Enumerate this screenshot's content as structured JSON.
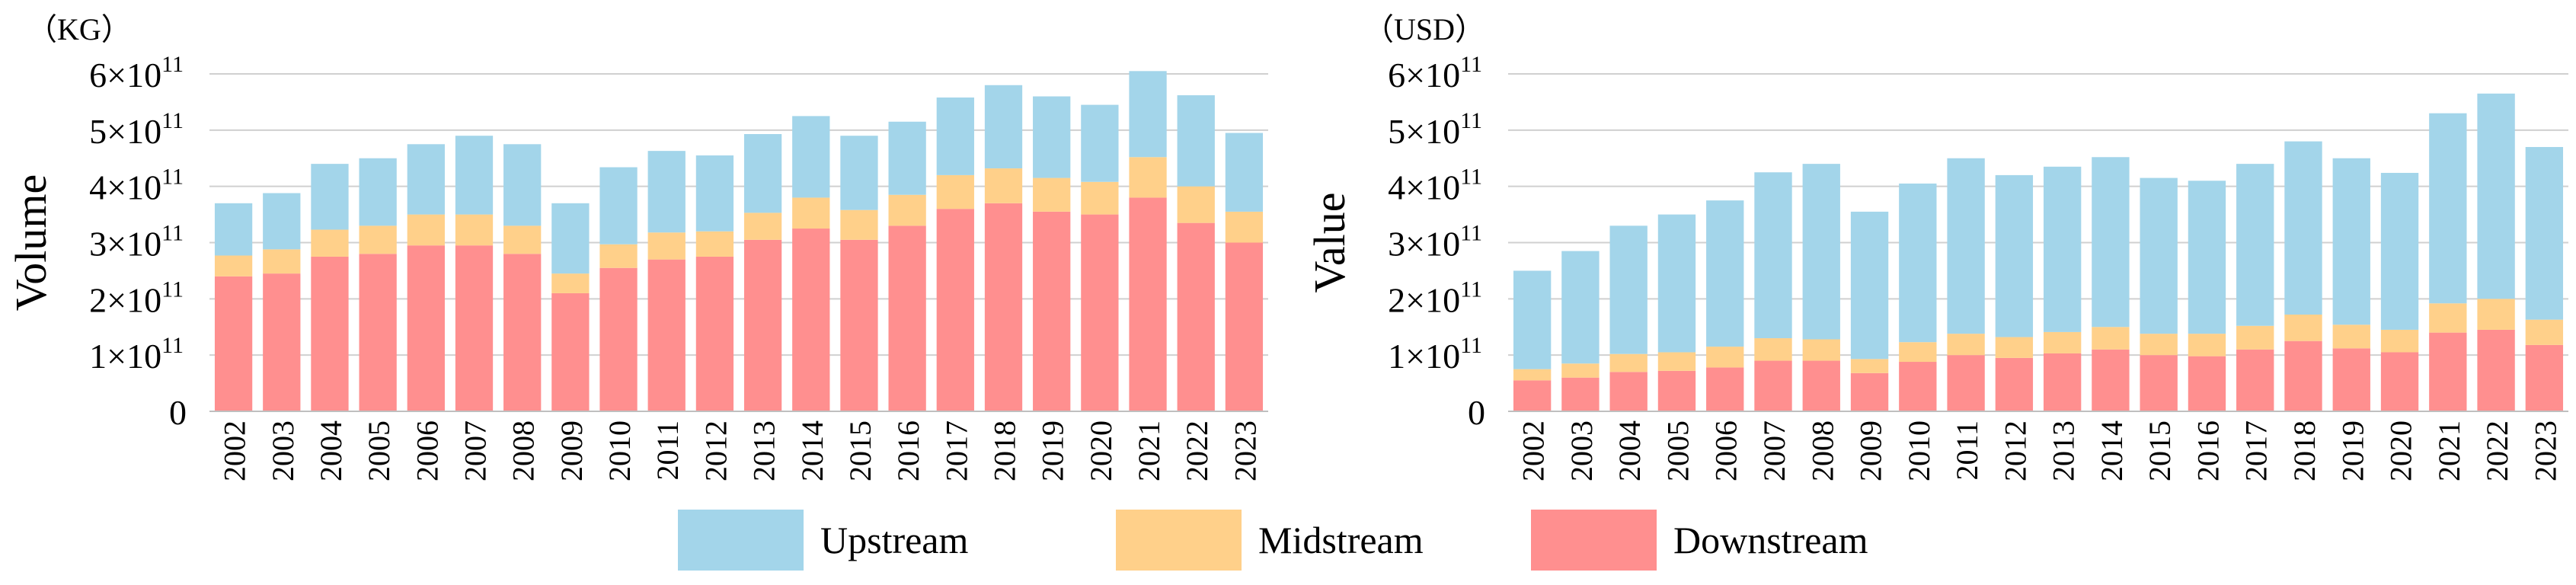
{
  "chart_data": [
    {
      "type": "bar",
      "stacked": true,
      "unit_label": "（KG）",
      "ylabel": "Volume",
      "xlabel": "",
      "ylim": [
        0,
        600000000000
      ],
      "yticks": [
        {
          "value": 0,
          "base": "0",
          "exp": ""
        },
        {
          "value": 100000000000,
          "base": "1×10",
          "exp": "11"
        },
        {
          "value": 200000000000,
          "base": "2×10",
          "exp": "11"
        },
        {
          "value": 300000000000,
          "base": "3×10",
          "exp": "11"
        },
        {
          "value": 400000000000,
          "base": "4×10",
          "exp": "11"
        },
        {
          "value": 500000000000,
          "base": "5×10",
          "exp": "11"
        },
        {
          "value": 600000000000,
          "base": "6×10",
          "exp": "11"
        }
      ],
      "grid": true,
      "categories": [
        "2002",
        "2003",
        "2004",
        "2005",
        "2006",
        "2007",
        "2008",
        "2009",
        "2010",
        "2011",
        "2012",
        "2013",
        "2014",
        "2015",
        "2016",
        "2017",
        "2018",
        "2019",
        "2020",
        "2021",
        "2022",
        "2023"
      ],
      "series": [
        {
          "name": "Downstream",
          "color": "#ff8f8f",
          "values": [
            240000000000.0,
            245000000000.0,
            275000000000.0,
            280000000000.0,
            295000000000.0,
            295000000000.0,
            280000000000.0,
            210000000000.0,
            255000000000.0,
            270000000000.0,
            275000000000.0,
            305000000000.0,
            325000000000.0,
            305000000000.0,
            330000000000.0,
            360000000000.0,
            370000000000.0,
            355000000000.0,
            350000000000.0,
            380000000000.0,
            335000000000.0,
            300000000000.0
          ]
        },
        {
          "name": "Midstream",
          "color": "#ffd08a",
          "values": [
            37000000000.0,
            43000000000.0,
            48000000000.0,
            50000000000.0,
            55000000000.0,
            55000000000.0,
            50000000000.0,
            35000000000.0,
            42000000000.0,
            48000000000.0,
            45000000000.0,
            48000000000.0,
            55000000000.0,
            53000000000.0,
            55000000000.0,
            60000000000.0,
            62000000000.0,
            60000000000.0,
            58000000000.0,
            72000000000.0,
            65000000000.0,
            55000000000.0
          ]
        },
        {
          "name": "Upstream",
          "color": "#a3d5ea",
          "values": [
            93000000000.0,
            100000000000.0,
            117000000000.0,
            120000000000.0,
            125000000000.0,
            140000000000.0,
            145000000000.0,
            125000000000.0,
            137000000000.0,
            145000000000.0,
            135000000000.0,
            140000000000.0,
            145000000000.0,
            132000000000.0,
            130000000000.0,
            138000000000.0,
            148000000000.0,
            145000000000.0,
            137000000000.0,
            153000000000.0,
            162000000000.0,
            140000000000.0
          ]
        }
      ]
    },
    {
      "type": "bar",
      "stacked": true,
      "unit_label": "（USD）",
      "ylabel": "Value",
      "xlabel": "",
      "ylim": [
        0,
        600000000000
      ],
      "yticks": [
        {
          "value": 0,
          "base": "0",
          "exp": ""
        },
        {
          "value": 100000000000,
          "base": "1×10",
          "exp": "11"
        },
        {
          "value": 200000000000,
          "base": "2×10",
          "exp": "11"
        },
        {
          "value": 300000000000,
          "base": "3×10",
          "exp": "11"
        },
        {
          "value": 400000000000,
          "base": "4×10",
          "exp": "11"
        },
        {
          "value": 500000000000,
          "base": "5×10",
          "exp": "11"
        },
        {
          "value": 600000000000,
          "base": "6×10",
          "exp": "11"
        }
      ],
      "grid": true,
      "categories": [
        "2002",
        "2003",
        "2004",
        "2005",
        "2006",
        "2007",
        "2008",
        "2009",
        "2010",
        "2011",
        "2012",
        "2013",
        "2014",
        "2015",
        "2016",
        "2017",
        "2018",
        "2019",
        "2020",
        "2021",
        "2022",
        "2023"
      ],
      "series": [
        {
          "name": "Downstream",
          "color": "#ff8f8f",
          "values": [
            55000000000.0,
            60000000000.0,
            70000000000.0,
            72000000000.0,
            78000000000.0,
            90000000000.0,
            90000000000.0,
            68000000000.0,
            88000000000.0,
            100000000000.0,
            95000000000.0,
            103000000000.0,
            110000000000.0,
            100000000000.0,
            98000000000.0,
            110000000000.0,
            125000000000.0,
            112000000000.0,
            105000000000.0,
            140000000000.0,
            145000000000.0,
            118000000000.0
          ]
        },
        {
          "name": "Midstream",
          "color": "#ffd08a",
          "values": [
            20000000000.0,
            25000000000.0,
            32000000000.0,
            33000000000.0,
            37000000000.0,
            40000000000.0,
            38000000000.0,
            25000000000.0,
            35000000000.0,
            38000000000.0,
            37000000000.0,
            38000000000.0,
            40000000000.0,
            38000000000.0,
            40000000000.0,
            42000000000.0,
            47000000000.0,
            42000000000.0,
            40000000000.0,
            52000000000.0,
            55000000000.0,
            45000000000.0
          ]
        },
        {
          "name": "Upstream",
          "color": "#a3d5ea",
          "values": [
            175000000000.0,
            200000000000.0,
            228000000000.0,
            245000000000.0,
            260000000000.0,
            295000000000.0,
            312000000000.0,
            262000000000.0,
            282000000000.0,
            312000000000.0,
            288000000000.0,
            294000000000.0,
            302000000000.0,
            277000000000.0,
            272000000000.0,
            288000000000.0,
            308000000000.0,
            296000000000.0,
            279000000000.0,
            338000000000.0,
            365000000000.0,
            307000000000.0
          ]
        }
      ]
    }
  ],
  "legend": [
    {
      "name": "Upstream",
      "color": "#a3d5ea"
    },
    {
      "name": "Midstream",
      "color": "#ffd08a"
    },
    {
      "name": "Downstream",
      "color": "#ff8f8f"
    }
  ]
}
